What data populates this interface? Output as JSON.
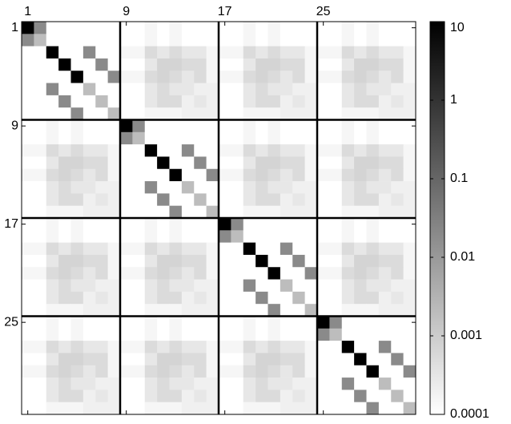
{
  "chart_data": {
    "type": "heatmap",
    "xlim": [
      0.5,
      32.5
    ],
    "ylim": [
      0.5,
      32.5
    ],
    "xticks": [
      1,
      9,
      17,
      25
    ],
    "yticks": [
      1,
      9,
      17,
      25
    ],
    "colormap": [
      "#ffffff",
      "#000000"
    ],
    "colorbar": {
      "scale": "log",
      "lim": [
        0.0001,
        10
      ],
      "ticks": [
        10,
        1,
        0.1,
        0.01,
        0.001,
        0.0001
      ]
    },
    "matrix": [
      [
        10,
        0.02,
        0.0001,
        0.0001,
        0.0001,
        0.0001,
        0.0001,
        0.0001,
        0.0001,
        0.0001,
        0.00015,
        0.0001,
        0.00015,
        0.0001,
        0.0001,
        0.0001,
        0.0001,
        0.0001,
        0.00015,
        0.0001,
        0.00015,
        0.0001,
        0.0001,
        0.0001,
        0.0001,
        0.0001,
        0.00015,
        0.0001,
        0.00015,
        0.0001,
        0.0001,
        0.0001
      ],
      [
        0.02,
        0.002,
        0.0001,
        0.0001,
        0.0001,
        0.0001,
        0.0001,
        0.0001,
        0.0001,
        0.0001,
        0.00015,
        0.0001,
        0.00015,
        0.0001,
        0.0001,
        0.0001,
        0.0001,
        0.0001,
        0.00015,
        0.0001,
        0.00015,
        0.0001,
        0.0001,
        0.0001,
        0.0001,
        0.0001,
        0.00015,
        0.0001,
        0.00015,
        0.0001,
        0.0001,
        0.0001
      ],
      [
        0.0001,
        0.0001,
        10,
        0.0001,
        0.0001,
        0.02,
        0.0001,
        0.0001,
        0.00015,
        0.00015,
        0.0005,
        0.0003,
        0.0005,
        0.0003,
        0.0003,
        0.00015,
        0.00015,
        0.00015,
        0.0005,
        0.0003,
        0.0005,
        0.0003,
        0.0003,
        0.00015,
        0.00015,
        0.00015,
        0.0005,
        0.0003,
        0.0005,
        0.0003,
        0.0003,
        0.00015
      ],
      [
        0.0001,
        0.0001,
        0.0001,
        10,
        0.0001,
        0.0001,
        0.02,
        0.0001,
        0.0001,
        0.0001,
        0.0003,
        0.0007,
        0.0007,
        0.0005,
        0.0005,
        0.00015,
        0.0001,
        0.0001,
        0.0003,
        0.0007,
        0.0007,
        0.0005,
        0.0005,
        0.00015,
        0.0001,
        0.0001,
        0.0003,
        0.0007,
        0.0007,
        0.0005,
        0.0005,
        0.00015
      ],
      [
        0.0001,
        0.0001,
        0.0001,
        0.0001,
        10,
        0.0001,
        0.0001,
        0.02,
        0.00015,
        0.00015,
        0.0005,
        0.0007,
        0.0005,
        0.0003,
        0.0005,
        0.00015,
        0.00015,
        0.00015,
        0.0005,
        0.0007,
        0.0005,
        0.0003,
        0.0005,
        0.00015,
        0.00015,
        0.00015,
        0.0005,
        0.0007,
        0.0005,
        0.0003,
        0.0005,
        0.00015
      ],
      [
        0.0001,
        0.0001,
        0.02,
        0.0001,
        0.0001,
        0.002,
        0.0001,
        0.0001,
        0.0001,
        0.0001,
        0.0003,
        0.0005,
        0.0003,
        0.0003,
        0.0002,
        0.0002,
        0.0001,
        0.0001,
        0.0003,
        0.0005,
        0.0003,
        0.0003,
        0.0002,
        0.0002,
        0.0001,
        0.0001,
        0.0003,
        0.0005,
        0.0003,
        0.0003,
        0.0002,
        0.0002
      ],
      [
        0.0001,
        0.0001,
        0.0001,
        0.02,
        0.0001,
        0.0001,
        0.002,
        0.0001,
        0.0001,
        0.0001,
        0.0003,
        0.0005,
        0.0005,
        0.0002,
        0.0003,
        0.0002,
        0.0001,
        0.0001,
        0.0003,
        0.0005,
        0.0005,
        0.0002,
        0.0003,
        0.0002,
        0.0001,
        0.0001,
        0.0003,
        0.0005,
        0.0005,
        0.0002,
        0.0003,
        0.0002
      ],
      [
        0.0001,
        0.0001,
        0.0001,
        0.0001,
        0.02,
        0.0001,
        0.0001,
        0.002,
        0.0001,
        0.0001,
        0.00015,
        0.00015,
        0.00015,
        0.0002,
        0.0002,
        0.0002,
        0.0001,
        0.0001,
        0.00015,
        0.00015,
        0.00015,
        0.0002,
        0.0002,
        0.0002,
        0.0001,
        0.0001,
        0.00015,
        0.00015,
        0.00015,
        0.0002,
        0.0002,
        0.0002
      ],
      [
        0.0001,
        0.0001,
        0.00015,
        0.0001,
        0.00015,
        0.0001,
        0.0001,
        0.0001,
        10,
        0.02,
        0.0001,
        0.0001,
        0.0001,
        0.0001,
        0.0001,
        0.0001,
        0.0001,
        0.0001,
        0.00015,
        0.0001,
        0.00015,
        0.0001,
        0.0001,
        0.0001,
        0.0001,
        0.0001,
        0.00015,
        0.0001,
        0.00015,
        0.0001,
        0.0001,
        0.0001
      ],
      [
        0.0001,
        0.0001,
        0.00015,
        0.0001,
        0.00015,
        0.0001,
        0.0001,
        0.0001,
        0.02,
        0.002,
        0.0001,
        0.0001,
        0.0001,
        0.0001,
        0.0001,
        0.0001,
        0.0001,
        0.0001,
        0.00015,
        0.0001,
        0.00015,
        0.0001,
        0.0001,
        0.0001,
        0.0001,
        0.0001,
        0.00015,
        0.0001,
        0.00015,
        0.0001,
        0.0001,
        0.0001
      ],
      [
        0.00015,
        0.00015,
        0.0005,
        0.0003,
        0.0005,
        0.0003,
        0.0003,
        0.00015,
        0.0001,
        0.0001,
        10,
        0.0001,
        0.0001,
        0.02,
        0.0001,
        0.0001,
        0.00015,
        0.00015,
        0.0005,
        0.0003,
        0.0005,
        0.0003,
        0.0003,
        0.00015,
        0.00015,
        0.00015,
        0.0005,
        0.0003,
        0.0005,
        0.0003,
        0.0003,
        0.00015
      ],
      [
        0.0001,
        0.0001,
        0.0003,
        0.0007,
        0.0007,
        0.0005,
        0.0005,
        0.00015,
        0.0001,
        0.0001,
        0.0001,
        10,
        0.0001,
        0.0001,
        0.02,
        0.0001,
        0.0001,
        0.0001,
        0.0003,
        0.0007,
        0.0007,
        0.0005,
        0.0005,
        0.00015,
        0.0001,
        0.0001,
        0.0003,
        0.0007,
        0.0007,
        0.0005,
        0.0005,
        0.00015
      ],
      [
        0.00015,
        0.00015,
        0.0005,
        0.0007,
        0.0005,
        0.0003,
        0.0005,
        0.00015,
        0.0001,
        0.0001,
        0.0001,
        0.0001,
        10,
        0.0001,
        0.0001,
        0.02,
        0.00015,
        0.00015,
        0.0005,
        0.0007,
        0.0005,
        0.0003,
        0.0005,
        0.00015,
        0.00015,
        0.00015,
        0.0005,
        0.0007,
        0.0005,
        0.0003,
        0.0005,
        0.00015
      ],
      [
        0.0001,
        0.0001,
        0.0003,
        0.0005,
        0.0003,
        0.0003,
        0.0002,
        0.0002,
        0.0001,
        0.0001,
        0.02,
        0.0001,
        0.0001,
        0.002,
        0.0001,
        0.0001,
        0.0001,
        0.0001,
        0.0003,
        0.0005,
        0.0003,
        0.0003,
        0.0002,
        0.0002,
        0.0001,
        0.0001,
        0.0003,
        0.0005,
        0.0003,
        0.0003,
        0.0002,
        0.0002
      ],
      [
        0.0001,
        0.0001,
        0.0003,
        0.0005,
        0.0005,
        0.0002,
        0.0003,
        0.0002,
        0.0001,
        0.0001,
        0.0001,
        0.02,
        0.0001,
        0.0001,
        0.002,
        0.0001,
        0.0001,
        0.0001,
        0.0003,
        0.0005,
        0.0005,
        0.0002,
        0.0003,
        0.0002,
        0.0001,
        0.0001,
        0.0003,
        0.0005,
        0.0005,
        0.0002,
        0.0003,
        0.0002
      ],
      [
        0.0001,
        0.0001,
        0.00015,
        0.00015,
        0.00015,
        0.0002,
        0.0002,
        0.0002,
        0.0001,
        0.0001,
        0.0001,
        0.0001,
        0.02,
        0.0001,
        0.0001,
        0.002,
        0.0001,
        0.0001,
        0.00015,
        0.00015,
        0.00015,
        0.0002,
        0.0002,
        0.0002,
        0.0001,
        0.0001,
        0.00015,
        0.00015,
        0.00015,
        0.0002,
        0.0002,
        0.0002
      ],
      [
        0.0001,
        0.0001,
        0.00015,
        0.0001,
        0.00015,
        0.0001,
        0.0001,
        0.0001,
        0.0001,
        0.0001,
        0.00015,
        0.0001,
        0.00015,
        0.0001,
        0.0001,
        0.0001,
        10,
        0.02,
        0.0001,
        0.0001,
        0.0001,
        0.0001,
        0.0001,
        0.0001,
        0.0001,
        0.0001,
        0.00015,
        0.0001,
        0.00015,
        0.0001,
        0.0001,
        0.0001
      ],
      [
        0.0001,
        0.0001,
        0.00015,
        0.0001,
        0.00015,
        0.0001,
        0.0001,
        0.0001,
        0.0001,
        0.0001,
        0.00015,
        0.0001,
        0.00015,
        0.0001,
        0.0001,
        0.0001,
        0.02,
        0.002,
        0.0001,
        0.0001,
        0.0001,
        0.0001,
        0.0001,
        0.0001,
        0.0001,
        0.0001,
        0.00015,
        0.0001,
        0.00015,
        0.0001,
        0.0001,
        0.0001
      ],
      [
        0.00015,
        0.00015,
        0.0005,
        0.0003,
        0.0005,
        0.0003,
        0.0003,
        0.00015,
        0.00015,
        0.00015,
        0.0005,
        0.0003,
        0.0005,
        0.0003,
        0.0003,
        0.00015,
        0.0001,
        0.0001,
        10,
        0.0001,
        0.0001,
        0.02,
        0.0001,
        0.0001,
        0.00015,
        0.00015,
        0.0005,
        0.0003,
        0.0005,
        0.0003,
        0.0003,
        0.00015
      ],
      [
        0.0001,
        0.0001,
        0.0003,
        0.0007,
        0.0007,
        0.0005,
        0.0005,
        0.00015,
        0.0001,
        0.0001,
        0.0003,
        0.0007,
        0.0007,
        0.0005,
        0.0005,
        0.00015,
        0.0001,
        0.0001,
        0.0001,
        10,
        0.0001,
        0.0001,
        0.02,
        0.0001,
        0.0001,
        0.0001,
        0.0003,
        0.0007,
        0.0007,
        0.0005,
        0.0005,
        0.00015
      ],
      [
        0.00015,
        0.00015,
        0.0005,
        0.0007,
        0.0005,
        0.0003,
        0.0005,
        0.00015,
        0.00015,
        0.00015,
        0.0005,
        0.0007,
        0.0005,
        0.0003,
        0.0005,
        0.00015,
        0.0001,
        0.0001,
        0.0001,
        0.0001,
        10,
        0.0001,
        0.0001,
        0.02,
        0.00015,
        0.00015,
        0.0005,
        0.0007,
        0.0005,
        0.0003,
        0.0005,
        0.00015
      ],
      [
        0.0001,
        0.0001,
        0.0003,
        0.0005,
        0.0003,
        0.0003,
        0.0002,
        0.0002,
        0.0001,
        0.0001,
        0.0003,
        0.0005,
        0.0003,
        0.0003,
        0.0002,
        0.0002,
        0.0001,
        0.0001,
        0.02,
        0.0001,
        0.0001,
        0.002,
        0.0001,
        0.0001,
        0.0001,
        0.0001,
        0.0003,
        0.0005,
        0.0003,
        0.0003,
        0.0002,
        0.0002
      ],
      [
        0.0001,
        0.0001,
        0.0003,
        0.0005,
        0.0005,
        0.0002,
        0.0003,
        0.0002,
        0.0001,
        0.0001,
        0.0003,
        0.0005,
        0.0005,
        0.0002,
        0.0003,
        0.0002,
        0.0001,
        0.0001,
        0.0001,
        0.02,
        0.0001,
        0.0001,
        0.002,
        0.0001,
        0.0001,
        0.0001,
        0.0003,
        0.0005,
        0.0005,
        0.0002,
        0.0003,
        0.0002
      ],
      [
        0.0001,
        0.0001,
        0.00015,
        0.00015,
        0.00015,
        0.0002,
        0.0002,
        0.0002,
        0.0001,
        0.0001,
        0.00015,
        0.00015,
        0.00015,
        0.0002,
        0.0002,
        0.0002,
        0.0001,
        0.0001,
        0.0001,
        0.0001,
        0.02,
        0.0001,
        0.0001,
        0.002,
        0.0001,
        0.0001,
        0.00015,
        0.00015,
        0.00015,
        0.0002,
        0.0002,
        0.0002
      ],
      [
        0.0001,
        0.0001,
        0.00015,
        0.0001,
        0.00015,
        0.0001,
        0.0001,
        0.0001,
        0.0001,
        0.0001,
        0.00015,
        0.0001,
        0.00015,
        0.0001,
        0.0001,
        0.0001,
        0.0001,
        0.0001,
        0.00015,
        0.0001,
        0.00015,
        0.0001,
        0.0001,
        0.0001,
        10,
        0.02,
        0.0001,
        0.0001,
        0.0001,
        0.0001,
        0.0001,
        0.0001
      ],
      [
        0.0001,
        0.0001,
        0.00015,
        0.0001,
        0.00015,
        0.0001,
        0.0001,
        0.0001,
        0.0001,
        0.0001,
        0.00015,
        0.0001,
        0.00015,
        0.0001,
        0.0001,
        0.0001,
        0.0001,
        0.0001,
        0.00015,
        0.0001,
        0.00015,
        0.0001,
        0.0001,
        0.0001,
        0.02,
        0.002,
        0.0001,
        0.0001,
        0.0001,
        0.0001,
        0.0001,
        0.0001
      ],
      [
        0.00015,
        0.00015,
        0.0005,
        0.0003,
        0.0005,
        0.0003,
        0.0003,
        0.00015,
        0.00015,
        0.00015,
        0.0005,
        0.0003,
        0.0005,
        0.0003,
        0.0003,
        0.00015,
        0.00015,
        0.00015,
        0.0005,
        0.0003,
        0.0005,
        0.0003,
        0.0003,
        0.00015,
        0.0001,
        0.0001,
        10,
        0.0001,
        0.0001,
        0.02,
        0.0001,
        0.0001
      ],
      [
        0.0001,
        0.0001,
        0.0003,
        0.0007,
        0.0007,
        0.0005,
        0.0005,
        0.00015,
        0.0001,
        0.0001,
        0.0003,
        0.0007,
        0.0007,
        0.0005,
        0.0005,
        0.00015,
        0.0001,
        0.0001,
        0.0003,
        0.0007,
        0.0007,
        0.0005,
        0.0005,
        0.00015,
        0.0001,
        0.0001,
        0.0001,
        10,
        0.0001,
        0.0001,
        0.02,
        0.0001
      ],
      [
        0.00015,
        0.00015,
        0.0005,
        0.0007,
        0.0005,
        0.0003,
        0.0005,
        0.00015,
        0.00015,
        0.00015,
        0.0005,
        0.0007,
        0.0005,
        0.0003,
        0.0005,
        0.00015,
        0.00015,
        0.00015,
        0.0005,
        0.0007,
        0.0005,
        0.0003,
        0.0005,
        0.00015,
        0.0001,
        0.0001,
        0.0001,
        0.0001,
        10,
        0.0001,
        0.0001,
        0.02
      ],
      [
        0.0001,
        0.0001,
        0.0003,
        0.0005,
        0.0003,
        0.0003,
        0.0002,
        0.0002,
        0.0001,
        0.0001,
        0.0003,
        0.0005,
        0.0003,
        0.0003,
        0.0002,
        0.0002,
        0.0001,
        0.0001,
        0.0003,
        0.0005,
        0.0003,
        0.0003,
        0.0002,
        0.0002,
        0.0001,
        0.0001,
        0.02,
        0.0001,
        0.0001,
        0.002,
        0.0001,
        0.0001
      ],
      [
        0.0001,
        0.0001,
        0.0003,
        0.0005,
        0.0005,
        0.0002,
        0.0003,
        0.0002,
        0.0001,
        0.0001,
        0.0003,
        0.0005,
        0.0005,
        0.0002,
        0.0003,
        0.0002,
        0.0001,
        0.0001,
        0.0003,
        0.0005,
        0.0005,
        0.0002,
        0.0003,
        0.0002,
        0.0001,
        0.0001,
        0.0001,
        0.02,
        0.0001,
        0.0001,
        0.002,
        0.0001
      ],
      [
        0.0001,
        0.0001,
        0.00015,
        0.00015,
        0.00015,
        0.0002,
        0.0002,
        0.0002,
        0.0001,
        0.0001,
        0.00015,
        0.00015,
        0.00015,
        0.0002,
        0.0002,
        0.0002,
        0.0001,
        0.0001,
        0.00015,
        0.00015,
        0.00015,
        0.0002,
        0.0002,
        0.0002,
        0.0001,
        0.0001,
        0.0001,
        0.0001,
        0.02,
        0.0001,
        0.0001,
        0.002
      ]
    ]
  }
}
